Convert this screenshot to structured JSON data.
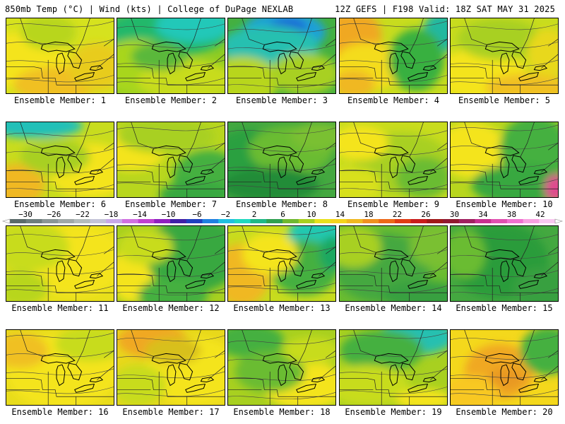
{
  "header": {
    "title_left": "850mb Temp (°C) | Wind (kts) | College of DuPage NEXLAB",
    "title_right": "12Z GEFS | F198 Valid: 18Z SAT MAY 31 2025"
  },
  "panels": [
    {
      "label": "Ensemble Member: 1",
      "base": "#d6e21e",
      "blobs": [
        [
          "#f4e41c",
          20,
          60,
          70,
          40
        ],
        [
          "#f0c020",
          70,
          95,
          60,
          25
        ],
        [
          "#e8cc1e",
          130,
          70,
          40,
          35
        ],
        [
          "#b8d61a",
          60,
          20,
          40,
          25
        ]
      ]
    },
    {
      "label": "Ensemble Member: 2",
      "base": "#8fcc22",
      "blobs": [
        [
          "#22b86a",
          70,
          20,
          90,
          35
        ],
        [
          "#20c8b8",
          110,
          10,
          55,
          25
        ],
        [
          "#a8d61e",
          30,
          70,
          60,
          40
        ],
        [
          "#c8dc1e",
          100,
          90,
          70,
          30
        ],
        [
          "#5ab83a",
          60,
          55,
          40,
          20
        ]
      ]
    },
    {
      "label": "Ensemble Member: 3",
      "base": "#44b040",
      "blobs": [
        [
          "#1ea0d8",
          80,
          20,
          60,
          30
        ],
        [
          "#1e5ad8",
          85,
          15,
          28,
          15
        ],
        [
          "#26c0b0",
          60,
          40,
          70,
          30
        ],
        [
          "#b8d61e",
          20,
          90,
          55,
          35
        ],
        [
          "#a8d020",
          110,
          80,
          50,
          30
        ]
      ]
    },
    {
      "label": "Ensemble Member: 4",
      "base": "#c8dc1e",
      "blobs": [
        [
          "#f0a820",
          15,
          25,
          45,
          40
        ],
        [
          "#f4dc1c",
          40,
          70,
          50,
          35
        ],
        [
          "#20b8a0",
          145,
          20,
          25,
          30
        ],
        [
          "#38b040",
          110,
          60,
          40,
          45
        ],
        [
          "#f0b820",
          20,
          95,
          30,
          20
        ]
      ]
    },
    {
      "label": "Ensemble Member: 5",
      "base": "#c8dc1e",
      "blobs": [
        [
          "#f4e41c",
          40,
          80,
          70,
          35
        ],
        [
          "#f0c020",
          110,
          100,
          60,
          20
        ],
        [
          "#a8d020",
          70,
          30,
          60,
          30
        ],
        [
          "#e8d81c",
          140,
          50,
          30,
          35
        ]
      ]
    },
    {
      "label": "Ensemble Member: 6",
      "base": "#c8dc1e",
      "blobs": [
        [
          "#22c0b8",
          40,
          5,
          70,
          18
        ],
        [
          "#f4e41c",
          120,
          70,
          60,
          40
        ],
        [
          "#f0b820",
          15,
          90,
          40,
          30
        ],
        [
          "#a8d020",
          70,
          50,
          50,
          25
        ]
      ]
    },
    {
      "label": "Ensemble Member: 7",
      "base": "#b8d61e",
      "blobs": [
        [
          "#44b040",
          130,
          80,
          50,
          40
        ],
        [
          "#f4e41c",
          20,
          40,
          50,
          30
        ],
        [
          "#a8d020",
          70,
          20,
          70,
          25
        ],
        [
          "#38a840",
          110,
          105,
          50,
          20
        ]
      ]
    },
    {
      "label": "Ensemble Member: 8",
      "base": "#44a840",
      "blobs": [
        [
          "#2aa040",
          30,
          60,
          60,
          50
        ],
        [
          "#6abc30",
          90,
          40,
          60,
          35
        ],
        [
          "#228c38",
          60,
          90,
          70,
          25
        ],
        [
          "#7ac030",
          130,
          20,
          40,
          20
        ]
      ]
    },
    {
      "label": "Ensemble Member: 9",
      "base": "#c8dc1e",
      "blobs": [
        [
          "#a8d020",
          90,
          60,
          70,
          45
        ],
        [
          "#f4e41c",
          30,
          30,
          40,
          25
        ],
        [
          "#6abc30",
          120,
          80,
          40,
          30
        ],
        [
          "#d8e01c",
          20,
          90,
          40,
          25
        ]
      ]
    },
    {
      "label": "Ensemble Member: 10",
      "base": "#b8d61e",
      "blobs": [
        [
          "#f4e41c",
          30,
          40,
          50,
          40
        ],
        [
          "#44b040",
          120,
          40,
          50,
          50
        ],
        [
          "#38a840",
          100,
          90,
          70,
          30
        ],
        [
          "#e04890",
          150,
          95,
          15,
          20
        ]
      ]
    },
    {
      "label": "Ensemble Member: 11",
      "base": "#e8e01c",
      "blobs": [
        [
          "#f4e41c",
          100,
          50,
          70,
          50
        ],
        [
          "#c8dc1e",
          30,
          30,
          60,
          35
        ],
        [
          "#b8d61e",
          20,
          90,
          40,
          25
        ]
      ]
    },
    {
      "label": "Ensemble Member: 12",
      "base": "#a8d020",
      "blobs": [
        [
          "#f4e41c",
          20,
          70,
          30,
          40
        ],
        [
          "#38a840",
          110,
          40,
          70,
          55
        ],
        [
          "#44b040",
          80,
          100,
          50,
          25
        ],
        [
          "#c8dc1e",
          40,
          30,
          40,
          25
        ]
      ]
    },
    {
      "label": "Ensemble Member: 13",
      "base": "#c8dc1e",
      "blobs": [
        [
          "#f0b820",
          20,
          70,
          40,
          45
        ],
        [
          "#20c8b0",
          130,
          15,
          45,
          30
        ],
        [
          "#44b040",
          110,
          60,
          50,
          40
        ],
        [
          "#f4e41c",
          60,
          40,
          40,
          30
        ],
        [
          "#1ea860",
          150,
          40,
          20,
          25
        ]
      ]
    },
    {
      "label": "Ensemble Member: 14",
      "base": "#6abc30",
      "blobs": [
        [
          "#44a840",
          60,
          60,
          70,
          50
        ],
        [
          "#a8d020",
          20,
          30,
          40,
          30
        ],
        [
          "#38a040",
          120,
          100,
          60,
          20
        ],
        [
          "#7ac030",
          140,
          30,
          40,
          30
        ]
      ]
    },
    {
      "label": "Ensemble Member: 15",
      "base": "#44a840",
      "blobs": [
        [
          "#2a9c3a",
          70,
          50,
          70,
          55
        ],
        [
          "#6abc30",
          20,
          40,
          30,
          35
        ],
        [
          "#38a040",
          130,
          90,
          40,
          30
        ]
      ]
    },
    {
      "label": "Ensemble Member: 16",
      "base": "#e8dc1c",
      "blobs": [
        [
          "#f4e41c",
          80,
          60,
          80,
          55
        ],
        [
          "#c8dc1e",
          120,
          20,
          50,
          25
        ],
        [
          "#f0c020",
          20,
          30,
          40,
          25
        ]
      ]
    },
    {
      "label": "Ensemble Member: 17",
      "base": "#e8d81c",
      "blobs": [
        [
          "#f0a820",
          50,
          15,
          50,
          25
        ],
        [
          "#f4e41c",
          110,
          60,
          70,
          50
        ],
        [
          "#c8dc1e",
          30,
          80,
          40,
          30
        ],
        [
          "#d8c01c",
          80,
          30,
          40,
          20
        ]
      ]
    },
    {
      "label": "Ensemble Member: 18",
      "base": "#a8d020",
      "blobs": [
        [
          "#44b040",
          30,
          15,
          50,
          25
        ],
        [
          "#f4e41c",
          110,
          80,
          60,
          35
        ],
        [
          "#6abc30",
          60,
          60,
          50,
          30
        ],
        [
          "#c8dc1e",
          120,
          30,
          40,
          20
        ]
      ]
    },
    {
      "label": "Ensemble Member: 19",
      "base": "#a8d020",
      "blobs": [
        [
          "#26c0b0",
          110,
          10,
          55,
          25
        ],
        [
          "#44b040",
          60,
          30,
          60,
          30
        ],
        [
          "#c8dc1e",
          40,
          80,
          60,
          30
        ],
        [
          "#f4e41c",
          120,
          100,
          40,
          15
        ]
      ]
    },
    {
      "label": "Ensemble Member: 20",
      "base": "#f4d81c",
      "blobs": [
        [
          "#f0a820",
          70,
          60,
          50,
          40
        ],
        [
          "#44b040",
          140,
          30,
          40,
          35
        ],
        [
          "#f8c820",
          30,
          90,
          40,
          25
        ],
        [
          "#e89820",
          80,
          70,
          25,
          15
        ]
      ]
    }
  ],
  "colorbar": {
    "tick_labels": [
      "−30",
      "−26",
      "−22",
      "−18",
      "−14",
      "−10",
      "−6",
      "−2",
      "2",
      "6",
      "10",
      "14",
      "18",
      "22",
      "26",
      "30",
      "34",
      "38",
      "42"
    ],
    "colors": [
      "#5a6a6a",
      "#6e7e7e",
      "#8a9696",
      "#a0a8a8",
      "#b4bcbc",
      "#c4c4d8",
      "#c8a8e8",
      "#d070e0",
      "#c040d0",
      "#9020c0",
      "#4020a8",
      "#2040c0",
      "#2080e0",
      "#20c0e0",
      "#20d8c0",
      "#20b888",
      "#30a050",
      "#70b830",
      "#a8d020",
      "#e8e01c",
      "#f4d41c",
      "#f0b820",
      "#f09020",
      "#ec6818",
      "#e03c14",
      "#c81c1c",
      "#a01818",
      "#901830",
      "#a02060",
      "#c83090",
      "#e050b0",
      "#f070d0",
      "#f8a0e0",
      "#f8c8f0"
    ]
  }
}
